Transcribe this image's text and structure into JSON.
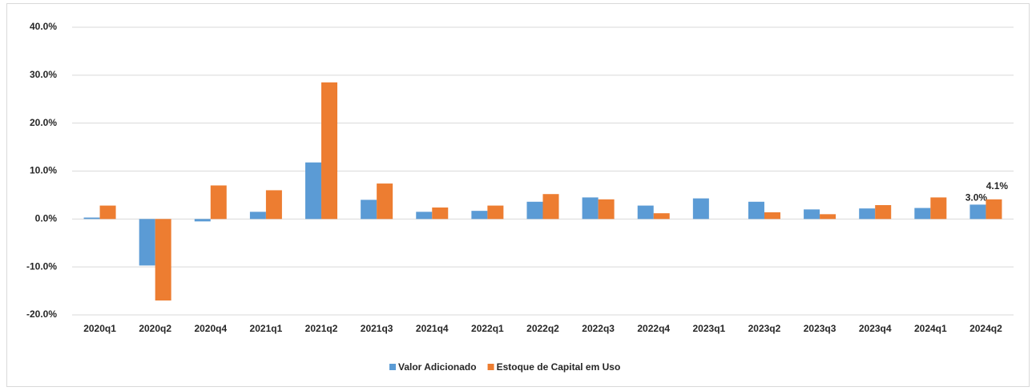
{
  "chart_data": {
    "type": "bar",
    "categories": [
      "2020q1",
      "2020q2",
      "2020q4",
      "2021q1",
      "2021q2",
      "2021q3",
      "2021q4",
      "2022q1",
      "2022q2",
      "2022q3",
      "2022q4",
      "2023q1",
      "2023q2",
      "2023q3",
      "2023q4",
      "2024q1",
      "2024q2"
    ],
    "series": [
      {
        "name": "Valor Adicionado",
        "color": "#5b9bd5",
        "values": [
          0.3,
          -9.7,
          -0.5,
          1.5,
          11.8,
          4.0,
          1.5,
          1.7,
          3.6,
          4.5,
          2.8,
          4.3,
          3.6,
          2.0,
          2.2,
          2.3,
          3.0
        ],
        "value_labels": [
          null,
          null,
          null,
          null,
          null,
          null,
          null,
          null,
          null,
          null,
          null,
          null,
          null,
          null,
          null,
          null,
          "3.0%"
        ]
      },
      {
        "name": "Estoque de Capital em Uso",
        "color": "#ed7d31",
        "values": [
          2.8,
          -17.0,
          7.0,
          6.0,
          28.5,
          7.4,
          2.4,
          2.8,
          5.2,
          4.1,
          1.2,
          null,
          1.4,
          1.0,
          2.9,
          4.5,
          4.1
        ],
        "value_labels": [
          null,
          null,
          null,
          null,
          null,
          null,
          null,
          null,
          null,
          null,
          null,
          null,
          null,
          null,
          null,
          null,
          "4.1%"
        ]
      }
    ],
    "ylim": [
      -20,
      40
    ],
    "yticks": [
      {
        "value": -20,
        "label": "-20.0%"
      },
      {
        "value": -10,
        "label": "-10.0%"
      },
      {
        "value": 0,
        "label": "0.0%"
      },
      {
        "value": 10,
        "label": "10.0%"
      },
      {
        "value": 20,
        "label": "20.0%"
      },
      {
        "value": 30,
        "label": "30.0%"
      },
      {
        "value": 40,
        "label": "40.0%"
      }
    ],
    "grid": true
  }
}
